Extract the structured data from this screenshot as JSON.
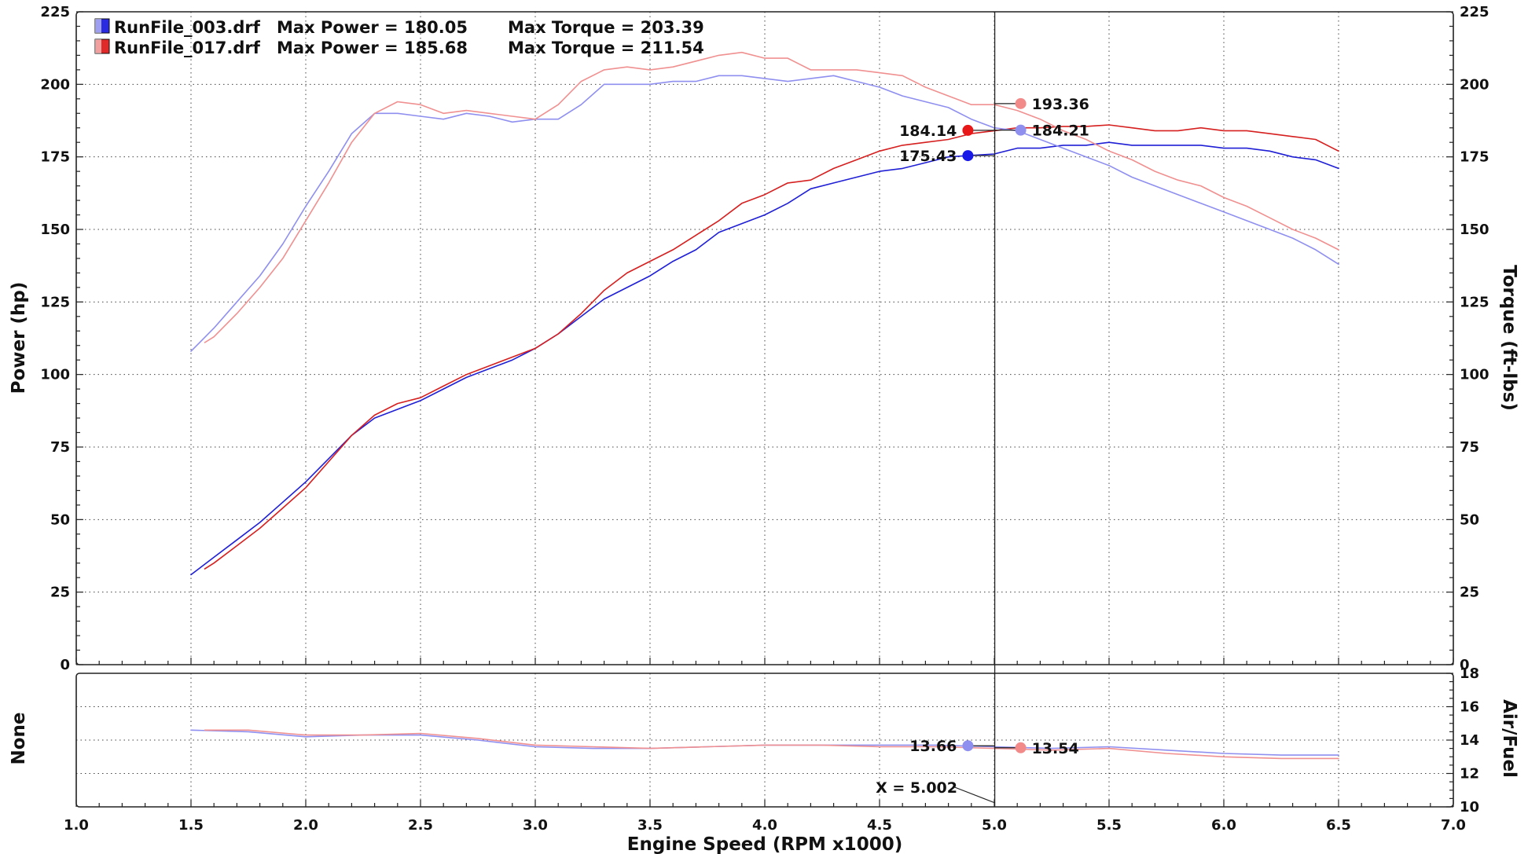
{
  "chart_data": [
    {
      "type": "line",
      "panel": "main",
      "xlabel": "Engine Speed (RPM x1000)",
      "ylabel": "Power (hp)",
      "y2label": "Torque (ft-lbs)",
      "xlim": [
        1.0,
        7.0
      ],
      "ylim": [
        0,
        225
      ],
      "y2lim": [
        0,
        225
      ],
      "xticks": [
        "1.0",
        "1.5",
        "2.0",
        "2.5",
        "3.0",
        "3.5",
        "4.0",
        "4.5",
        "5.0",
        "5.5",
        "6.0",
        "6.5",
        "7.0"
      ],
      "yticks": [
        "0",
        "25",
        "50",
        "75",
        "100",
        "125",
        "150",
        "175",
        "200",
        "225"
      ],
      "y2ticks": [
        "0",
        "25",
        "50",
        "75",
        "100",
        "125",
        "150",
        "175",
        "200",
        "225"
      ],
      "grid": true,
      "legend": [
        {
          "file": "RunFile_003.drf",
          "power_text": "Max Power = 180.05",
          "torque_text": "Max Torque = 203.39",
          "color": "#2a2ae0"
        },
        {
          "file": "RunFile_017.drf",
          "power_text": "Max Power = 185.68",
          "torque_text": "Max Torque = 211.54",
          "color": "#e02a2a"
        }
      ],
      "series": [
        {
          "run": "RunFile_003.drf",
          "quantity": "power",
          "color": "#1f1fd6",
          "x": [
            1.5,
            1.6,
            1.7,
            1.8,
            1.9,
            2.0,
            2.1,
            2.2,
            2.3,
            2.4,
            2.5,
            2.6,
            2.7,
            2.8,
            2.9,
            3.0,
            3.1,
            3.2,
            3.3,
            3.4,
            3.5,
            3.6,
            3.7,
            3.8,
            3.9,
            4.0,
            4.1,
            4.2,
            4.3,
            4.4,
            4.5,
            4.6,
            4.7,
            4.8,
            4.9,
            5.0,
            5.1,
            5.2,
            5.3,
            5.4,
            5.5,
            5.6,
            5.7,
            5.8,
            5.9,
            6.0,
            6.1,
            6.2,
            6.3,
            6.4,
            6.5
          ],
          "y": [
            31,
            37,
            43,
            49,
            56,
            63,
            71,
            79,
            85,
            88,
            91,
            95,
            99,
            102,
            105,
            109,
            114,
            120,
            126,
            130,
            134,
            139,
            143,
            149,
            152,
            155,
            159,
            164,
            166,
            168,
            170,
            171,
            173,
            175,
            175.5,
            176,
            178,
            178,
            179,
            179,
            180,
            179,
            179,
            179,
            179,
            178,
            178,
            177,
            175,
            174,
            171
          ]
        },
        {
          "run": "RunFile_017.drf",
          "quantity": "power",
          "color": "#d61f1f",
          "x": [
            1.56,
            1.6,
            1.7,
            1.8,
            1.9,
            2.0,
            2.1,
            2.2,
            2.3,
            2.4,
            2.5,
            2.6,
            2.7,
            2.8,
            2.9,
            3.0,
            3.1,
            3.2,
            3.3,
            3.4,
            3.5,
            3.6,
            3.7,
            3.8,
            3.9,
            4.0,
            4.1,
            4.2,
            4.3,
            4.4,
            4.5,
            4.6,
            4.7,
            4.8,
            4.9,
            5.0,
            5.1,
            5.2,
            5.3,
            5.4,
            5.5,
            5.6,
            5.7,
            5.8,
            5.9,
            6.0,
            6.1,
            6.2,
            6.3,
            6.4,
            6.5
          ],
          "y": [
            33,
            35,
            41,
            47,
            54,
            61,
            70,
            79,
            86,
            90,
            92,
            96,
            100,
            103,
            106,
            109,
            114,
            121,
            129,
            135,
            139,
            143,
            148,
            153,
            159,
            162,
            166,
            167,
            171,
            174,
            177,
            179,
            180,
            181,
            183,
            184,
            185,
            185,
            185.5,
            185.5,
            186,
            185,
            184,
            184,
            185,
            184,
            184,
            183,
            182,
            181,
            177
          ]
        },
        {
          "run": "RunFile_003.drf",
          "quantity": "torque",
          "color": "#8f8ff0",
          "x": [
            1.5,
            1.6,
            1.7,
            1.8,
            1.9,
            2.0,
            2.1,
            2.2,
            2.3,
            2.4,
            2.5,
            2.6,
            2.7,
            2.8,
            2.9,
            3.0,
            3.1,
            3.2,
            3.3,
            3.4,
            3.5,
            3.6,
            3.7,
            3.8,
            3.9,
            4.0,
            4.1,
            4.2,
            4.3,
            4.4,
            4.5,
            4.6,
            4.7,
            4.8,
            4.9,
            5.0,
            5.1,
            5.2,
            5.3,
            5.4,
            5.5,
            5.6,
            5.7,
            5.8,
            5.9,
            6.0,
            6.1,
            6.2,
            6.3,
            6.4,
            6.5
          ],
          "y": [
            108,
            116,
            125,
            134,
            145,
            158,
            170,
            183,
            190,
            190,
            189,
            188,
            190,
            189,
            187,
            188,
            188,
            193,
            200,
            200,
            200,
            201,
            201,
            203,
            203,
            202,
            201,
            202,
            203,
            201,
            199,
            196,
            194,
            192,
            188,
            185,
            184,
            181,
            178,
            175,
            172,
            168,
            165,
            162,
            159,
            156,
            153,
            150,
            147,
            143,
            138
          ]
        },
        {
          "run": "RunFile_017.drf",
          "quantity": "torque",
          "color": "#f09090",
          "x": [
            1.56,
            1.6,
            1.7,
            1.8,
            1.9,
            2.0,
            2.1,
            2.2,
            2.3,
            2.4,
            2.5,
            2.6,
            2.7,
            2.8,
            2.9,
            3.0,
            3.1,
            3.2,
            3.3,
            3.4,
            3.5,
            3.6,
            3.7,
            3.8,
            3.9,
            4.0,
            4.1,
            4.2,
            4.3,
            4.4,
            4.5,
            4.6,
            4.7,
            4.8,
            4.9,
            5.0,
            5.1,
            5.2,
            5.3,
            5.4,
            5.5,
            5.6,
            5.7,
            5.8,
            5.9,
            6.0,
            6.1,
            6.2,
            6.3,
            6.4,
            6.5
          ],
          "y": [
            111,
            113,
            121,
            130,
            140,
            153,
            166,
            180,
            190,
            194,
            193,
            190,
            191,
            190,
            189,
            188,
            193,
            201,
            205,
            206,
            205,
            206,
            208,
            210,
            211,
            209,
            209,
            205,
            205,
            205,
            204,
            203,
            199,
            196,
            193,
            193,
            191,
            188,
            184,
            181,
            177,
            174,
            170,
            167,
            165,
            161,
            158,
            154,
            150,
            147,
            143
          ]
        }
      ],
      "markers": [
        {
          "label": "193.36",
          "x": 5.115,
          "y": 193.36,
          "color": "#f28a8a",
          "side": "right"
        },
        {
          "label": "184.14",
          "x": 4.885,
          "y": 184.14,
          "color": "#e81818",
          "side": "left"
        },
        {
          "label": "184.21",
          "x": 5.115,
          "y": 184.21,
          "color": "#8f8ff0",
          "side": "right"
        },
        {
          "label": "175.43",
          "x": 4.885,
          "y": 175.43,
          "color": "#1818e8",
          "side": "left"
        }
      ],
      "cursor_x": 5.002
    },
    {
      "type": "line",
      "panel": "afr",
      "ylabel_left": "None",
      "ylabel_right": "Air/Fuel",
      "xlim": [
        1.0,
        7.0
      ],
      "ylim": [
        10,
        18
      ],
      "yticks": [
        "10",
        "12",
        "14",
        "16",
        "18"
      ],
      "grid": true,
      "series": [
        {
          "run": "RunFile_003.drf",
          "quantity": "air_fuel",
          "color": "#8f8ff0",
          "x": [
            1.5,
            1.75,
            2.0,
            2.25,
            2.5,
            2.75,
            3.0,
            3.25,
            3.5,
            3.75,
            4.0,
            4.25,
            4.5,
            4.75,
            5.0,
            5.25,
            5.5,
            5.75,
            6.0,
            6.25,
            6.5
          ],
          "y": [
            14.6,
            14.5,
            14.2,
            14.3,
            14.3,
            14.0,
            13.6,
            13.5,
            13.5,
            13.6,
            13.7,
            13.7,
            13.7,
            13.7,
            13.6,
            13.5,
            13.6,
            13.4,
            13.2,
            13.1,
            13.1
          ]
        },
        {
          "run": "RunFile_017.drf",
          "quantity": "air_fuel",
          "color": "#f09090",
          "x": [
            1.56,
            1.75,
            2.0,
            2.25,
            2.5,
            2.75,
            3.0,
            3.25,
            3.5,
            3.75,
            4.0,
            4.25,
            4.5,
            4.75,
            5.0,
            5.25,
            5.5,
            5.75,
            6.0,
            6.25,
            6.5
          ],
          "y": [
            14.6,
            14.6,
            14.3,
            14.3,
            14.4,
            14.1,
            13.7,
            13.6,
            13.5,
            13.6,
            13.7,
            13.7,
            13.6,
            13.6,
            13.5,
            13.4,
            13.5,
            13.2,
            13.0,
            12.9,
            12.9
          ]
        }
      ],
      "markers": [
        {
          "label": "13.66",
          "x": 4.885,
          "y": 13.66,
          "color": "#8f8ff0",
          "side": "left"
        },
        {
          "label": "13.54",
          "x": 5.115,
          "y": 13.54,
          "color": "#f28a8a",
          "side": "right"
        }
      ],
      "cursor_label": "X = 5.002"
    }
  ]
}
